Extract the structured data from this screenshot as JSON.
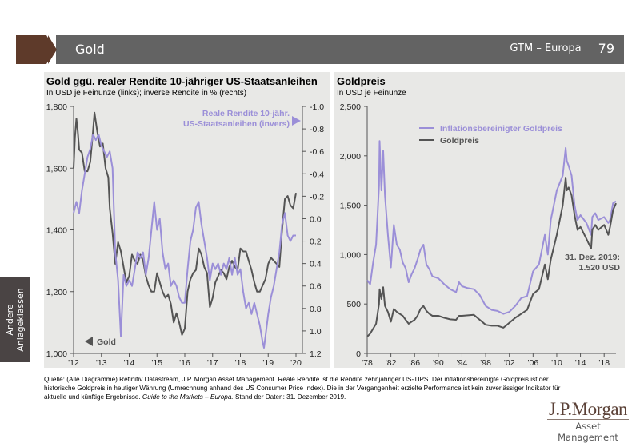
{
  "header": {
    "title": "Gold",
    "series_label": "GTM – Europa",
    "page_number": "79"
  },
  "side_tab": {
    "line1": "Andere",
    "line2": "Anlageklassen"
  },
  "footer": {
    "text1": "Quelle: (Alle Diagramme) Refinitiv Datastream, J.P. Morgan Asset Management. Reale Rendite ist die Rendite zehnjähriger US-TIPS. Der inflationsbereinigte Goldpreis ist der historische Goldpreis in heutiger Währung (Umrechnung anhand des US Consumer Price Index). Die in der Vergangenheit erzielte Performance ist kein zuverlässiger Indikator für aktuelle und künftige Ergebnisse. ",
    "italic": "Guide to the Markets – Europa.",
    "text2": " Stand der Daten: 31. Dezember 2019."
  },
  "logo": {
    "line1": "J.P.Morgan",
    "line2": "Asset Management"
  },
  "colors": {
    "gold": "#545454",
    "real_yield": "#9b8fd8",
    "panel_bg": "#e8e8e6",
    "header_bg": "#636363",
    "brand_brown": "#5e3a2a"
  },
  "chart_data": [
    {
      "type": "line",
      "title": "Gold ggü. realer Rendite 10-jähriger US-Staatsanleihen",
      "subtitle": "In USD je Feinunze (links); inverse Rendite in % (rechts)",
      "x_tick_labels": [
        "'12",
        "'13",
        "'14",
        "'15",
        "'16",
        "'17",
        "'18",
        "'19",
        "'20"
      ],
      "x_range": [
        2012,
        2020
      ],
      "y_left": {
        "range": [
          1000,
          1800
        ],
        "ticks": [
          1000,
          1200,
          1400,
          1600,
          1800
        ],
        "tick_labels": [
          "1,000",
          "1,200",
          "1,400",
          "1,600",
          "1,800"
        ]
      },
      "y_right": {
        "range": [
          -1.0,
          1.2
        ],
        "inverted": true,
        "ticks": [
          -1.0,
          -0.8,
          -0.6,
          -0.4,
          -0.2,
          0.0,
          0.2,
          0.4,
          0.6,
          0.8,
          1.0,
          1.2
        ],
        "tick_labels": [
          "-1.0",
          "-0.8",
          "-0.6",
          "-0.4",
          "-0.2",
          "0.0",
          "0.2",
          "0.4",
          "0.6",
          "0.8",
          "1.0",
          "1.2"
        ]
      },
      "legend": [
        {
          "name": "Gold",
          "axis": "left",
          "label": "Gold",
          "placement": "bottom-left"
        },
        {
          "name": "Reale Rendite 10-jähr. US-Staatsanleihen (invers)",
          "axis": "right",
          "label_line1": "Reale Rendite 10-jähr.",
          "label_line2": "US-Staatsanleihen (invers)",
          "placement": "top-right"
        }
      ],
      "series": [
        {
          "name": "Gold",
          "axis": "left",
          "x": [
            2012.0,
            2012.05,
            2012.1,
            2012.15,
            2012.2,
            2012.3,
            2012.4,
            2012.5,
            2012.6,
            2012.7,
            2012.75,
            2012.85,
            2012.95,
            2013.05,
            2013.15,
            2013.25,
            2013.3,
            2013.4,
            2013.5,
            2013.6,
            2013.7,
            2013.8,
            2013.9,
            2014.0,
            2014.1,
            2014.2,
            2014.3,
            2014.4,
            2014.5,
            2014.6,
            2014.7,
            2014.8,
            2014.9,
            2015.0,
            2015.1,
            2015.2,
            2015.3,
            2015.4,
            2015.5,
            2015.6,
            2015.7,
            2015.8,
            2015.9,
            2016.0,
            2016.1,
            2016.2,
            2016.3,
            2016.4,
            2016.5,
            2016.6,
            2016.7,
            2016.8,
            2016.9,
            2017.0,
            2017.1,
            2017.2,
            2017.3,
            2017.4,
            2017.5,
            2017.6,
            2017.7,
            2017.8,
            2017.9,
            2018.0,
            2018.1,
            2018.2,
            2018.3,
            2018.4,
            2018.5,
            2018.6,
            2018.7,
            2018.8,
            2018.9,
            2019.0,
            2019.1,
            2019.2,
            2019.3,
            2019.4,
            2019.5,
            2019.6,
            2019.7,
            2019.8,
            2019.9,
            2020.0
          ],
          "y": [
            1600,
            1700,
            1760,
            1720,
            1660,
            1650,
            1590,
            1590,
            1620,
            1720,
            1780,
            1720,
            1670,
            1680,
            1600,
            1570,
            1470,
            1390,
            1290,
            1360,
            1330,
            1280,
            1230,
            1250,
            1320,
            1300,
            1290,
            1320,
            1300,
            1250,
            1220,
            1200,
            1200,
            1260,
            1230,
            1200,
            1180,
            1190,
            1160,
            1100,
            1130,
            1100,
            1060,
            1080,
            1200,
            1240,
            1260,
            1270,
            1340,
            1320,
            1280,
            1260,
            1150,
            1180,
            1230,
            1250,
            1270,
            1260,
            1240,
            1280,
            1300,
            1280,
            1270,
            1340,
            1330,
            1330,
            1300,
            1270,
            1230,
            1200,
            1200,
            1220,
            1240,
            1290,
            1310,
            1300,
            1290,
            1280,
            1400,
            1500,
            1510,
            1480,
            1470,
            1520
          ]
        },
        {
          "name": "Reale Rendite 10-jähr. US-Staatsanleihen (invers)",
          "axis": "right",
          "x": [
            2012.0,
            2012.1,
            2012.2,
            2012.3,
            2012.4,
            2012.5,
            2012.6,
            2012.7,
            2012.8,
            2012.9,
            2013.0,
            2013.1,
            2013.2,
            2013.3,
            2013.4,
            2013.5,
            2013.6,
            2013.7,
            2013.8,
            2013.9,
            2014.0,
            2014.1,
            2014.2,
            2014.3,
            2014.4,
            2014.5,
            2014.6,
            2014.7,
            2014.8,
            2014.9,
            2015.0,
            2015.1,
            2015.2,
            2015.3,
            2015.4,
            2015.5,
            2015.6,
            2015.7,
            2015.8,
            2015.9,
            2016.0,
            2016.1,
            2016.2,
            2016.3,
            2016.4,
            2016.5,
            2016.6,
            2016.7,
            2016.8,
            2016.9,
            2017.0,
            2017.1,
            2017.2,
            2017.3,
            2017.4,
            2017.5,
            2017.6,
            2017.7,
            2017.8,
            2017.9,
            2018.0,
            2018.1,
            2018.2,
            2018.3,
            2018.4,
            2018.5,
            2018.6,
            2018.7,
            2018.8,
            2018.85,
            2018.9,
            2019.0,
            2019.1,
            2019.2,
            2019.3,
            2019.4,
            2019.5,
            2019.6,
            2019.7,
            2019.8,
            2019.9,
            2020.0
          ],
          "y": [
            -0.05,
            -0.15,
            -0.05,
            -0.25,
            -0.4,
            -0.55,
            -0.62,
            -0.75,
            -0.7,
            -0.75,
            -0.65,
            -0.6,
            -0.55,
            -0.6,
            -0.45,
            0.3,
            0.55,
            1.05,
            0.5,
            0.6,
            0.55,
            0.6,
            0.45,
            0.3,
            0.35,
            0.3,
            0.5,
            0.35,
            0.1,
            -0.15,
            0.1,
            0.0,
            0.3,
            0.45,
            0.4,
            0.6,
            0.55,
            0.6,
            0.7,
            0.75,
            0.75,
            0.45,
            0.2,
            0.1,
            -0.1,
            -0.15,
            0.05,
            0.2,
            0.35,
            0.55,
            0.4,
            0.45,
            0.4,
            0.5,
            0.4,
            0.45,
            0.35,
            0.5,
            0.35,
            0.5,
            0.45,
            0.65,
            0.8,
            0.75,
            0.85,
            0.75,
            0.85,
            0.95,
            1.1,
            1.15,
            1.05,
            0.85,
            0.7,
            0.6,
            0.45,
            0.3,
            0.05,
            -0.05,
            0.15,
            0.2,
            0.15,
            0.15
          ]
        }
      ]
    },
    {
      "type": "line",
      "title": "Goldpreis",
      "subtitle": "In USD je Feinunze",
      "x_tick_labels": [
        "'78",
        "'82",
        "'86",
        "'90",
        "'94",
        "'98",
        "'02",
        "'06",
        "'10",
        "'14",
        "'18"
      ],
      "x_range": [
        1978,
        2020
      ],
      "y": {
        "range": [
          0,
          2500
        ],
        "ticks": [
          0,
          500,
          1000,
          1500,
          2000,
          2500
        ],
        "tick_labels": [
          "0",
          "500",
          "1,000",
          "1,500",
          "2,000",
          "2,500"
        ]
      },
      "legend": [
        {
          "name": "Inflationsbereinigter Goldpreis",
          "placement": "top-left"
        },
        {
          "name": "Goldpreis",
          "placement": "top-left"
        }
      ],
      "annotation": {
        "line1": "31. Dez. 2019:",
        "line2": "1.520 USD"
      },
      "series": [
        {
          "name": "Inflationsbereinigter Goldpreis",
          "x": [
            1978,
            1978.5,
            1979,
            1979.5,
            1980,
            1980.1,
            1980.4,
            1980.7,
            1981,
            1981.5,
            1982,
            1982.5,
            1983,
            1983.5,
            1984,
            1984.5,
            1985,
            1985.5,
            1986,
            1986.5,
            1987,
            1987.5,
            1988,
            1988.5,
            1989,
            1990,
            1991,
            1992,
            1993,
            1993.5,
            1994,
            1995,
            1996,
            1997,
            1998,
            1999,
            2000,
            2001,
            2002,
            2003,
            2004,
            2005,
            2006,
            2007,
            2008,
            2008.5,
            2009,
            2010,
            2011,
            2011.5,
            2011.7,
            2012,
            2012.5,
            2013,
            2013.5,
            2014,
            2015,
            2015.8,
            2016,
            2016.5,
            2017,
            2018,
            2018.7,
            2019,
            2019.5,
            2020
          ],
          "y": [
            740,
            700,
            920,
            1100,
            1700,
            2150,
            1650,
            2050,
            1600,
            1200,
            870,
            1300,
            1100,
            1050,
            920,
            860,
            720,
            800,
            860,
            950,
            1050,
            1100,
            900,
            850,
            780,
            760,
            700,
            650,
            620,
            720,
            680,
            660,
            650,
            590,
            480,
            440,
            430,
            400,
            420,
            480,
            560,
            580,
            830,
            900,
            1200,
            1000,
            1350,
            1650,
            1800,
            2080,
            1950,
            1900,
            1800,
            1500,
            1350,
            1400,
            1320,
            1200,
            1380,
            1420,
            1350,
            1380,
            1320,
            1350,
            1520,
            1540
          ]
        },
        {
          "name": "Goldpreis",
          "x": [
            1978,
            1978.5,
            1979,
            1979.5,
            1980,
            1980.1,
            1980.4,
            1980.7,
            1981,
            1981.5,
            1982,
            1982.5,
            1983,
            1983.5,
            1984,
            1984.5,
            1985,
            1985.5,
            1986,
            1986.5,
            1987,
            1987.5,
            1988,
            1988.5,
            1989,
            1990,
            1991,
            1992,
            1993,
            1993.5,
            1994,
            1995,
            1996,
            1997,
            1998,
            1999,
            2000,
            2001,
            2002,
            2003,
            2004,
            2005,
            2006,
            2007,
            2008,
            2008.5,
            2009,
            2010,
            2011,
            2011.5,
            2011.7,
            2012,
            2012.5,
            2013,
            2013.5,
            2014,
            2015,
            2015.8,
            2016,
            2016.5,
            2017,
            2018,
            2018.7,
            2019,
            2019.5,
            2020
          ],
          "y": [
            170,
            200,
            250,
            300,
            500,
            650,
            550,
            670,
            480,
            420,
            320,
            450,
            420,
            400,
            380,
            340,
            300,
            320,
            340,
            380,
            450,
            480,
            430,
            400,
            380,
            380,
            360,
            345,
            340,
            380,
            380,
            385,
            390,
            340,
            290,
            280,
            280,
            260,
            310,
            360,
            400,
            440,
            600,
            650,
            900,
            750,
            950,
            1200,
            1500,
            1780,
            1650,
            1680,
            1600,
            1400,
            1250,
            1280,
            1160,
            1060,
            1250,
            1300,
            1250,
            1300,
            1200,
            1280,
            1450,
            1520
          ]
        }
      ]
    }
  ]
}
